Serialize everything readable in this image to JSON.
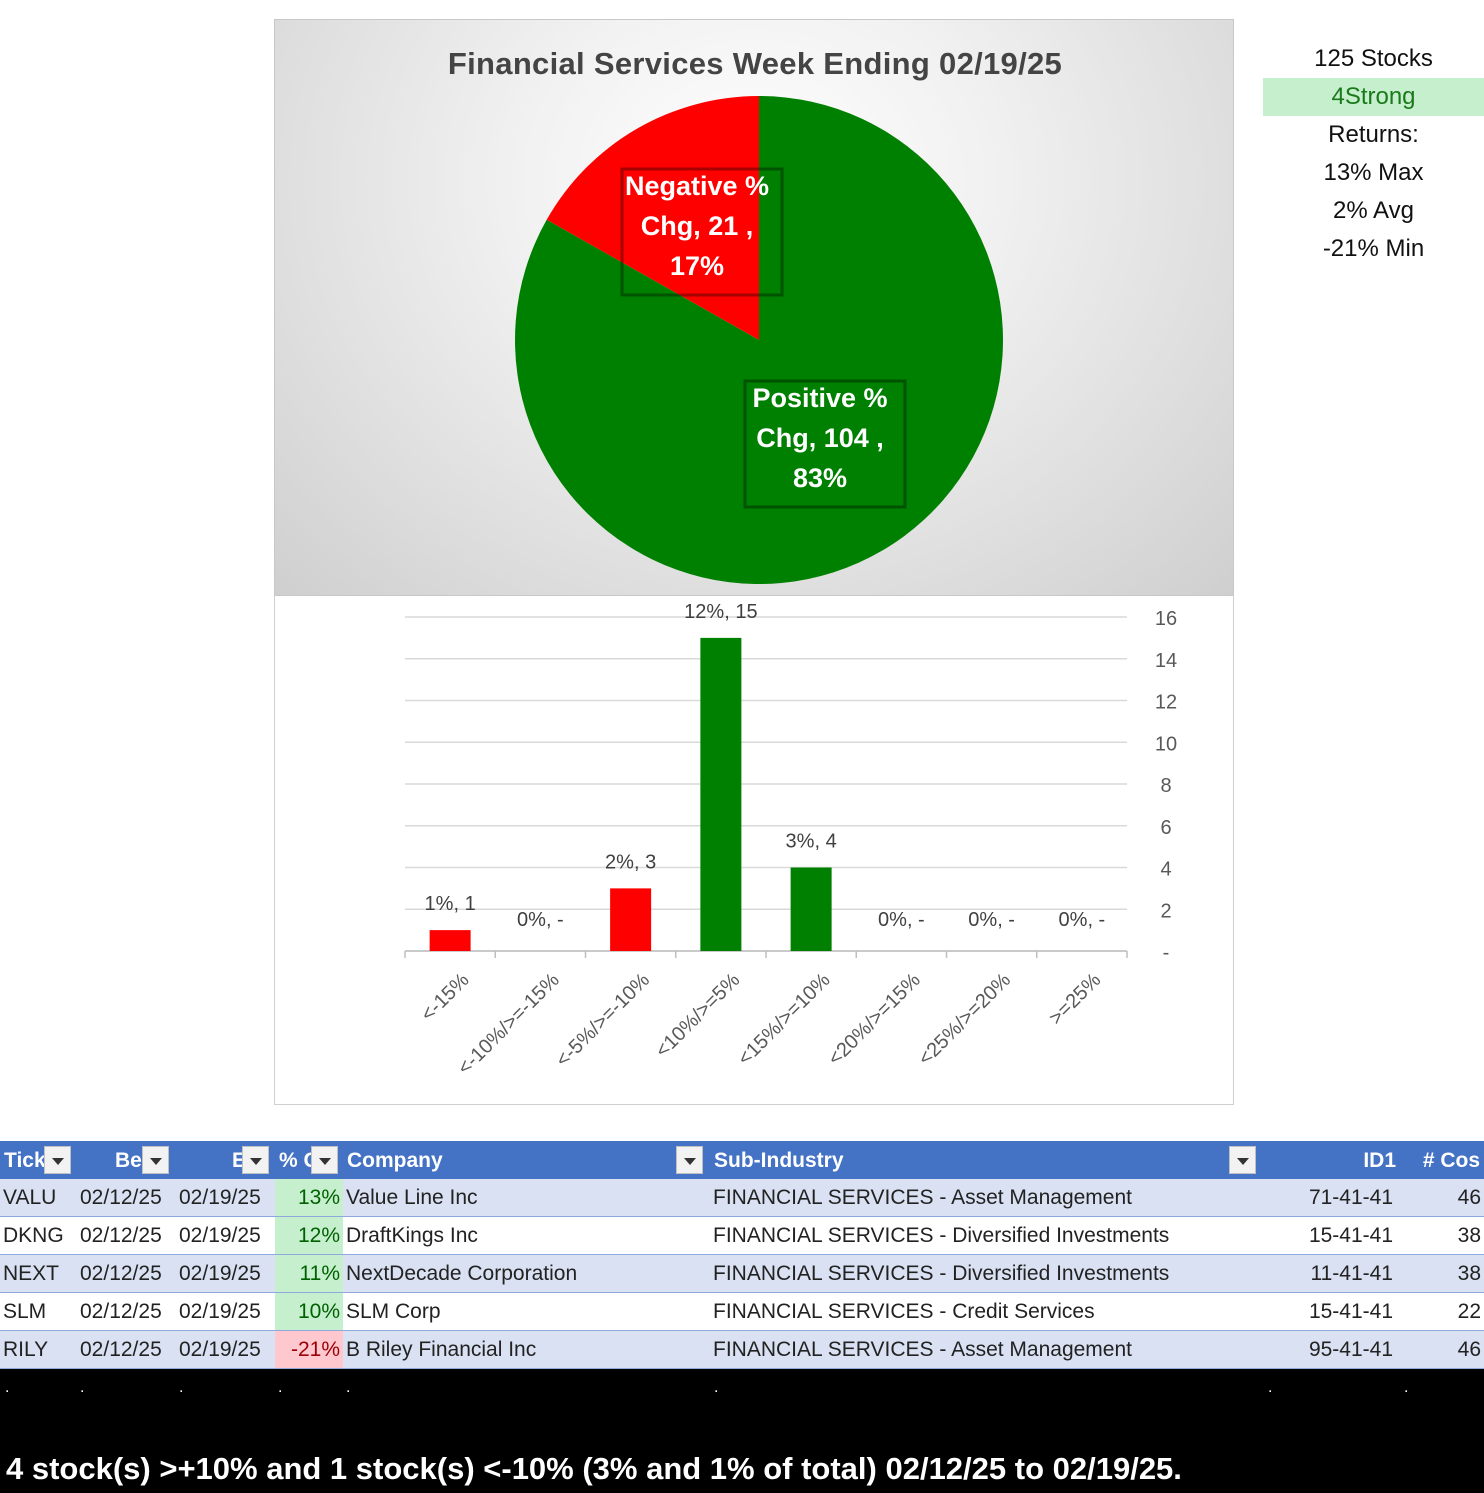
{
  "chart_data": [
    {
      "type": "pie",
      "title": "Financial Services Week Ending 02/19/25",
      "slices": [
        {
          "label": "Negative % Chg",
          "value": 21,
          "percent": "17%",
          "color": "#ff0000"
        },
        {
          "label": "Positive % Chg",
          "value": 104,
          "percent": "83%",
          "color": "#008000"
        }
      ]
    },
    {
      "type": "bar",
      "categories": [
        "<-15%",
        "<-10%/>=-15%",
        "<-5%/>=-10%",
        "<10%/>=5%",
        "<15%/>=10%",
        "<20%/>=15%",
        "<25%/>=20%",
        ">=25%"
      ],
      "values": [
        1,
        0,
        3,
        15,
        4,
        0,
        0,
        0
      ],
      "data_labels": [
        "1%,  1",
        "0%,  -",
        "2%,  3",
        "12%,  15",
        "3%,  4",
        "0%,  -",
        "0%,  -",
        "0%,  -"
      ],
      "colors": [
        "#ff0000",
        "#ff0000",
        "#ff0000",
        "#008000",
        "#008000",
        "#008000",
        "#008000",
        "#008000"
      ],
      "ylim": [
        0,
        16
      ],
      "yticks": [
        "-",
        "2",
        "4",
        "6",
        "8",
        "10",
        "12",
        "14",
        "16"
      ],
      "yaxis_side": "right",
      "grid": true
    }
  ],
  "stats": {
    "count": "125 Stocks",
    "strong": "4Strong",
    "returns_label": "Returns:",
    "max": "13% Max",
    "avg": "2% Avg",
    "min": "-21% Min"
  },
  "table": {
    "headers": {
      "ticker": "Tick",
      "begin": "Be",
      "end": "E",
      "pct": "% C",
      "company": "Company",
      "sub_industry": "Sub-Industry",
      "id": "ID1",
      "cos": "# Cos"
    },
    "rows": [
      {
        "ticker": "VALU",
        "begin": "02/12/25",
        "end": "02/19/25",
        "pct": "13%",
        "company": "Value Line Inc",
        "sub": "FINANCIAL SERVICES - Asset Management",
        "id": "71-41-41",
        "cos": "46"
      },
      {
        "ticker": "DKNG",
        "begin": "02/12/25",
        "end": "02/19/25",
        "pct": "12%",
        "company": "DraftKings Inc",
        "sub": "FINANCIAL SERVICES - Diversified Investments",
        "id": "15-41-41",
        "cos": "38"
      },
      {
        "ticker": "NEXT",
        "begin": "02/12/25",
        "end": "02/19/25",
        "pct": "11%",
        "company": "NextDecade Corporation",
        "sub": "FINANCIAL SERVICES - Diversified Investments",
        "id": "11-41-41",
        "cos": "38"
      },
      {
        "ticker": "SLM",
        "begin": "02/12/25",
        "end": "02/19/25",
        "pct": "10%",
        "company": "SLM Corp",
        "sub": "FINANCIAL SERVICES - Credit Services",
        "id": "15-41-41",
        "cos": "22"
      },
      {
        "ticker": "RILY",
        "begin": "02/12/25",
        "end": "02/19/25",
        "pct": "-21%",
        "company": "B Riley Financial Inc",
        "sub": "FINANCIAL SERVICES - Asset Management",
        "id": "95-41-41",
        "cos": "46"
      }
    ]
  },
  "footer": {
    "dot": ".",
    "summary": "4 stock(s) >+10% and 1 stock(s) <-10% (3% and 1% of total) 02/12/25 to 02/19/25."
  }
}
